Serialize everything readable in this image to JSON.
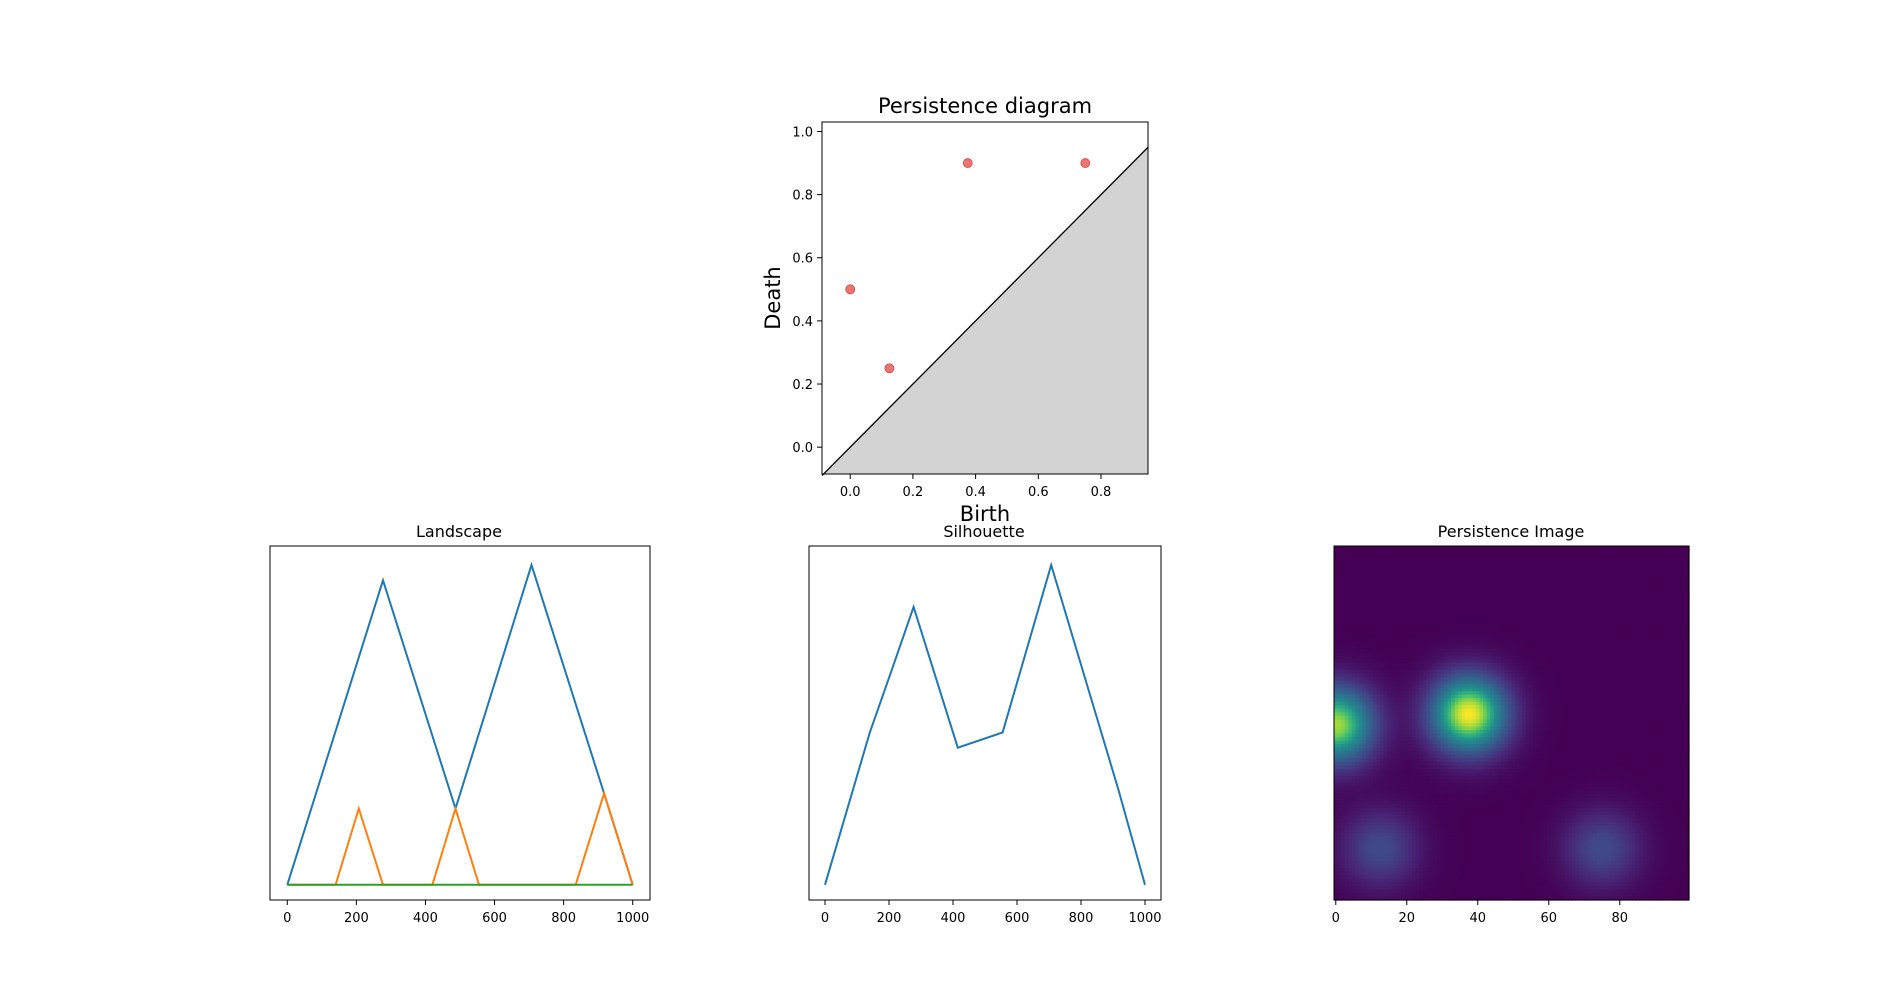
{
  "chart_data": [
    {
      "id": "pd",
      "type": "scatter",
      "title": "Persistence diagram",
      "xlabel": "Birth",
      "ylabel": "Death",
      "xlim": [
        -0.09,
        0.95
      ],
      "ylim": [
        -0.085,
        1.03
      ],
      "xticks": [
        0.0,
        0.2,
        0.4,
        0.6,
        0.8
      ],
      "xtick_labels": [
        "0.0",
        "0.2",
        "0.4",
        "0.6",
        "0.8"
      ],
      "yticks": [
        0.0,
        0.2,
        0.4,
        0.6,
        0.8,
        1.0
      ],
      "ytick_labels": [
        "0.0",
        "0.2",
        "0.4",
        "0.6",
        "0.8",
        "1.0"
      ],
      "points": [
        {
          "birth": 0.0,
          "death": 0.5
        },
        {
          "birth": 0.125,
          "death": 0.25
        },
        {
          "birth": 0.375,
          "death": 0.9
        },
        {
          "birth": 0.75,
          "death": 0.9
        }
      ],
      "point_color": "#ec6d6b",
      "diagonal_fill": "#d3d3d3",
      "grid": false
    },
    {
      "id": "landscape",
      "type": "line",
      "title": "Landscape",
      "xlim": [
        -50,
        1050
      ],
      "ylim": [
        -0.02,
        0.445
      ],
      "xticks": [
        0,
        200,
        400,
        600,
        800,
        1000
      ],
      "xtick_labels": [
        "0",
        "200",
        "400",
        "600",
        "800",
        "1000"
      ],
      "yticks_visible": false,
      "series": [
        {
          "name": "layer 1",
          "color": "#1f77b4",
          "x": [
            0,
            277,
            487,
            707,
            917,
            1000
          ],
          "y": [
            0,
            0.4,
            0.1,
            0.42,
            0.12,
            0
          ]
        },
        {
          "name": "layer 2",
          "color": "#ff7f0e",
          "x": [
            0,
            140,
            207,
            277,
            420,
            487,
            555,
            835,
            917,
            1000
          ],
          "y": [
            0,
            0,
            0.1,
            0,
            0,
            0.1,
            0,
            0,
            0.12,
            0
          ]
        },
        {
          "name": "layer 3",
          "color": "#2ca02c",
          "x": [
            0,
            1000
          ],
          "y": [
            0,
            0
          ]
        }
      ],
      "grid": false
    },
    {
      "id": "silhouette",
      "type": "line",
      "title": "Silhouette",
      "xlim": [
        -50,
        1050
      ],
      "ylim": [
        -0.02,
        0.445
      ],
      "xticks": [
        0,
        200,
        400,
        600,
        800,
        1000
      ],
      "xtick_labels": [
        "0",
        "200",
        "400",
        "600",
        "800",
        "1000"
      ],
      "yticks_visible": false,
      "series": [
        {
          "name": "silhouette",
          "color": "#1f77b4",
          "x": [
            0,
            140,
            207,
            277,
            415,
            555,
            707,
            835,
            917,
            1000
          ],
          "y": [
            0,
            0.2,
            0.28,
            0.365,
            0.18,
            0.2,
            0.42,
            0.24,
            0.125,
            0
          ]
        }
      ],
      "grid": false
    },
    {
      "id": "pimage",
      "type": "heatmap",
      "title": "Persistence Image",
      "xlim": [
        -0.5,
        99.5
      ],
      "xticks": [
        0,
        20,
        40,
        60,
        80
      ],
      "xtick_labels": [
        "0",
        "20",
        "40",
        "60",
        "80"
      ],
      "yticks_visible": false,
      "colormap": "viridis",
      "blobs": [
        {
          "cx": 0,
          "cy": 50,
          "sigma": 7.5,
          "amp": 0.9
        },
        {
          "cx": 37.5,
          "cy": 47,
          "sigma": 7.5,
          "amp": 1.0
        },
        {
          "cx": 12.5,
          "cy": 85,
          "sigma": 7.5,
          "amp": 0.28
        },
        {
          "cx": 75,
          "cy": 85,
          "sigma": 7.5,
          "amp": 0.28
        }
      ],
      "grid": false
    }
  ]
}
